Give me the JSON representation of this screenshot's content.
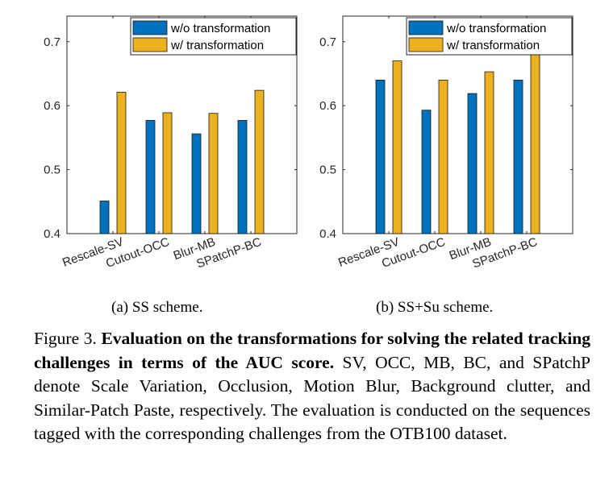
{
  "colors": {
    "series_a": "#0072BD",
    "series_b": "#EDB120"
  },
  "chart_data": [
    {
      "type": "bar",
      "subcaption": "(a)  SS scheme.",
      "categories": [
        "Rescale-SV",
        "Cutout-OCC",
        "Blur-MB",
        "SPatchP-BC"
      ],
      "series": [
        {
          "name": "w/o transformation",
          "values": [
            0.451,
            0.577,
            0.556,
            0.577
          ]
        },
        {
          "name": "w/ transformation",
          "values": [
            0.621,
            0.589,
            0.588,
            0.624
          ]
        }
      ],
      "yticks": [
        "0.4",
        "0.5",
        "0.6",
        "0.7"
      ],
      "ylim": [
        0.4,
        0.74
      ],
      "legend_position": "top-right",
      "grid": false
    },
    {
      "type": "bar",
      "subcaption": "(b)  SS+Su scheme.",
      "categories": [
        "Rescale-SV",
        "Cutout-OCC",
        "Blur-MB",
        "SPatchP-BC"
      ],
      "series": [
        {
          "name": "w/o transformation",
          "values": [
            0.64,
            0.593,
            0.619,
            0.64
          ]
        },
        {
          "name": "w/ transformation",
          "values": [
            0.67,
            0.64,
            0.653,
            0.693
          ]
        }
      ],
      "yticks": [
        "0.4",
        "0.5",
        "0.6",
        "0.7"
      ],
      "ylim": [
        0.4,
        0.74
      ],
      "legend_position": "top-right",
      "grid": false
    }
  ],
  "caption": {
    "prefix": "Figure 3. ",
    "bold": "Evaluation on the transformations for solving the related tracking challenges in terms of the AUC score.",
    "rest": " SV, OCC, MB, BC, and SPatchP denote Scale Variation, Occlusion, Motion Blur, Background clutter, and Similar-Patch Paste, respectively. The evaluation is conducted on the sequences tagged with the corresponding challenges from the OTB100 dataset."
  }
}
